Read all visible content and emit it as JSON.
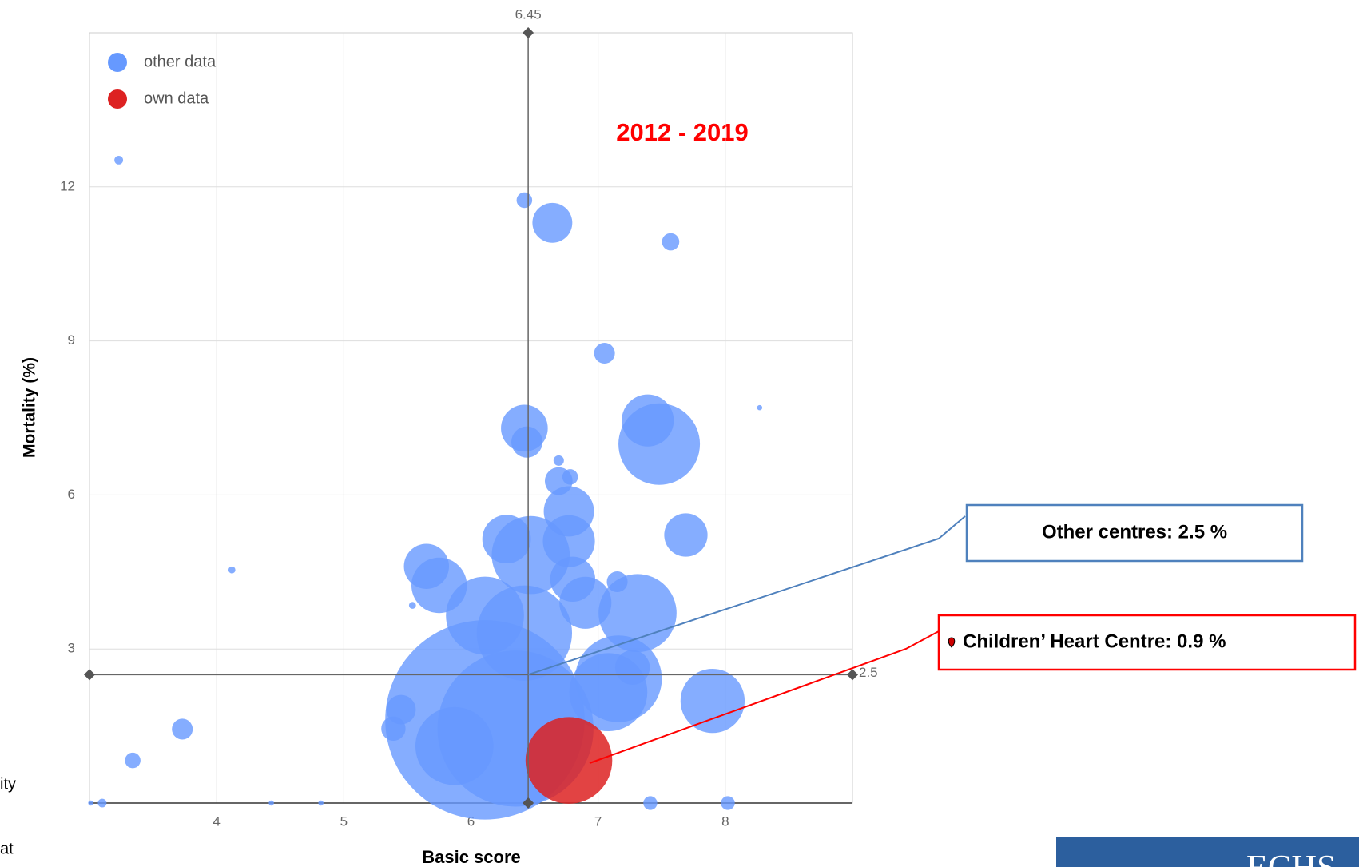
{
  "chart_data": {
    "type": "scatter",
    "xlabel": "Basic score",
    "ylabel": "Mortality (%)",
    "xlim": [
      3,
      9
    ],
    "ylim": [
      0,
      15
    ],
    "xticks": [
      4,
      5,
      6,
      7,
      8
    ],
    "yticks": [
      3,
      6,
      9,
      12
    ],
    "grid": true,
    "legend": "top-left",
    "series": [
      {
        "name": "other data",
        "color": "#6699ff",
        "x": [
          3.23,
          6.42,
          6.64,
          7.57,
          7.05,
          8.27,
          6.42,
          7.39,
          7.48,
          6.44,
          6.69,
          6.69,
          6.78,
          6.77,
          7.69,
          6.28,
          6.47,
          6.77,
          4.12,
          5.65,
          5.75,
          5.54,
          6.8,
          7.15,
          6.9,
          7.31,
          6.11,
          6.42,
          7.16,
          7.27,
          7.9,
          5.45,
          5.39,
          3.73,
          3.34,
          7.08,
          6.11,
          5.87,
          6.35,
          3.01,
          3.1,
          4.43,
          4.82,
          7.41,
          8.02
        ],
        "values": [
          12.52,
          11.74,
          11.3,
          10.93,
          8.76,
          7.7,
          7.3,
          7.45,
          6.99,
          7.03,
          6.67,
          6.27,
          6.35,
          5.68,
          5.22,
          5.14,
          4.83,
          5.1,
          4.54,
          4.61,
          4.24,
          3.85,
          4.36,
          4.31,
          3.9,
          3.7,
          3.65,
          3.31,
          2.42,
          2.64,
          1.99,
          1.82,
          1.45,
          1.44,
          0.83,
          2.16,
          1.62,
          1.11,
          1.45,
          0,
          0,
          0,
          0,
          0,
          0
        ],
        "sizes": [
          5,
          9,
          23,
          10,
          12,
          3,
          27,
          30,
          47,
          18,
          6,
          16,
          9,
          29,
          25,
          28,
          45,
          30,
          4,
          26,
          32,
          4,
          26,
          12,
          30,
          45,
          45,
          55,
          50,
          20,
          37,
          17,
          14,
          12,
          9,
          45,
          115,
          45,
          90,
          3,
          5,
          3,
          3,
          8,
          8
        ]
      },
      {
        "name": "own data",
        "color": "#dd2222",
        "x": [
          6.77
        ],
        "values": [
          0.83
        ],
        "sizes": [
          50
        ]
      }
    ],
    "mark_lines": [
      {
        "axis": "x",
        "value": 6.45
      },
      {
        "axis": "y",
        "value": 2.5
      }
    ],
    "period": "2012 - 2019",
    "callouts": [
      {
        "text": "Other centres: 2.5 %",
        "color": "#4f81bd"
      },
      {
        "text": "Children’ Heart Centre: 0.9 %",
        "color": "#ff0000"
      }
    ]
  },
  "page_fragments": [
    "ity",
    "at"
  ],
  "logo": "ECHS"
}
